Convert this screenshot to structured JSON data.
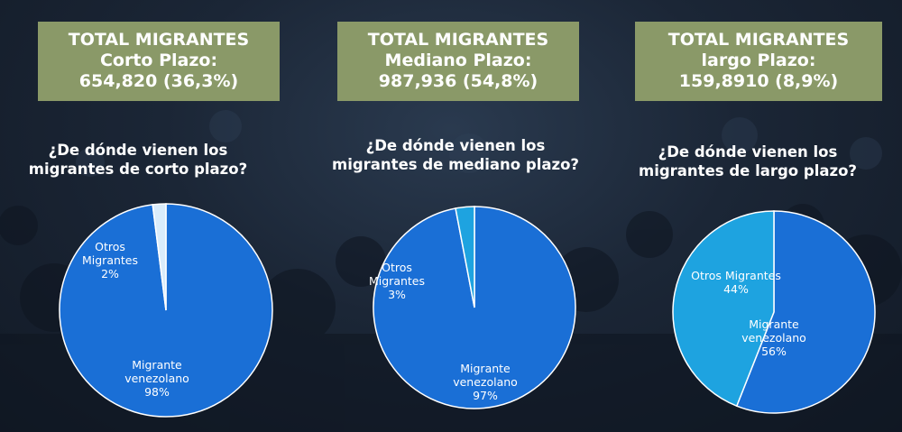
{
  "panels": [
    {
      "header": {
        "line1": "TOTAL MIGRANTES",
        "line2": "Corto Plazo:",
        "line3": "654,820 (36,3%)"
      },
      "question": {
        "line1": "¿De dónde vienen los",
        "line2": "migrantes de corto plazo?"
      }
    },
    {
      "header": {
        "line1": "TOTAL MIGRANTES",
        "line2": "Mediano Plazo:",
        "line3": "987,936  (54,8%)"
      },
      "question": {
        "line1": "¿De dónde vienen los",
        "line2": "migrantes de mediano plazo?"
      }
    },
    {
      "header": {
        "line1": "TOTAL MIGRANTES",
        "line2": "largo Plazo:",
        "line3": "159,8910 (8,9%)"
      },
      "question": {
        "line1": "¿De dónde vienen los",
        "line2": "migrantes de largo plazo?"
      }
    }
  ],
  "chart_data": [
    {
      "type": "pie",
      "title": "¿De dónde vienen los migrantes de corto plazo?",
      "slices": [
        {
          "name": "Migrante venezolano",
          "value": 98,
          "label_lines": [
            "Migrante",
            "venezolano",
            "98%"
          ],
          "color": "#1a6fd6",
          "label_color": "#ffffff"
        },
        {
          "name": "Otros Migrantes",
          "value": 2,
          "label_lines": [
            "Otros",
            "Migrantes",
            "2%"
          ],
          "color": "#d9ecfb",
          "label_color": "#ffffff"
        }
      ]
    },
    {
      "type": "pie",
      "title": "¿De dónde vienen los migrantes de mediano plazo?",
      "slices": [
        {
          "name": "Migrante venezolano",
          "value": 97,
          "label_lines": [
            "Migrante",
            "venezolano",
            "97%"
          ],
          "color": "#1a6fd6",
          "label_color": "#ffffff"
        },
        {
          "name": "Otros Migrantes",
          "value": 3,
          "label_lines": [
            "Otros",
            "Migrantes",
            "3%"
          ],
          "color": "#1ea3e0",
          "label_color": "#ffffff"
        }
      ]
    },
    {
      "type": "pie",
      "title": "¿De dónde vienen los migrantes de largo plazo?",
      "slices": [
        {
          "name": "Migrante venezolano",
          "value": 56,
          "label_lines": [
            "Migrante",
            "venezolano",
            "56%"
          ],
          "color": "#1a6fd6",
          "label_color": "#ffffff"
        },
        {
          "name": "Otros Migrantes",
          "value": 44,
          "label_lines": [
            "Otros Migrantes",
            "44%"
          ],
          "color": "#1ea3e0",
          "label_color": "#ffffff"
        }
      ]
    }
  ]
}
